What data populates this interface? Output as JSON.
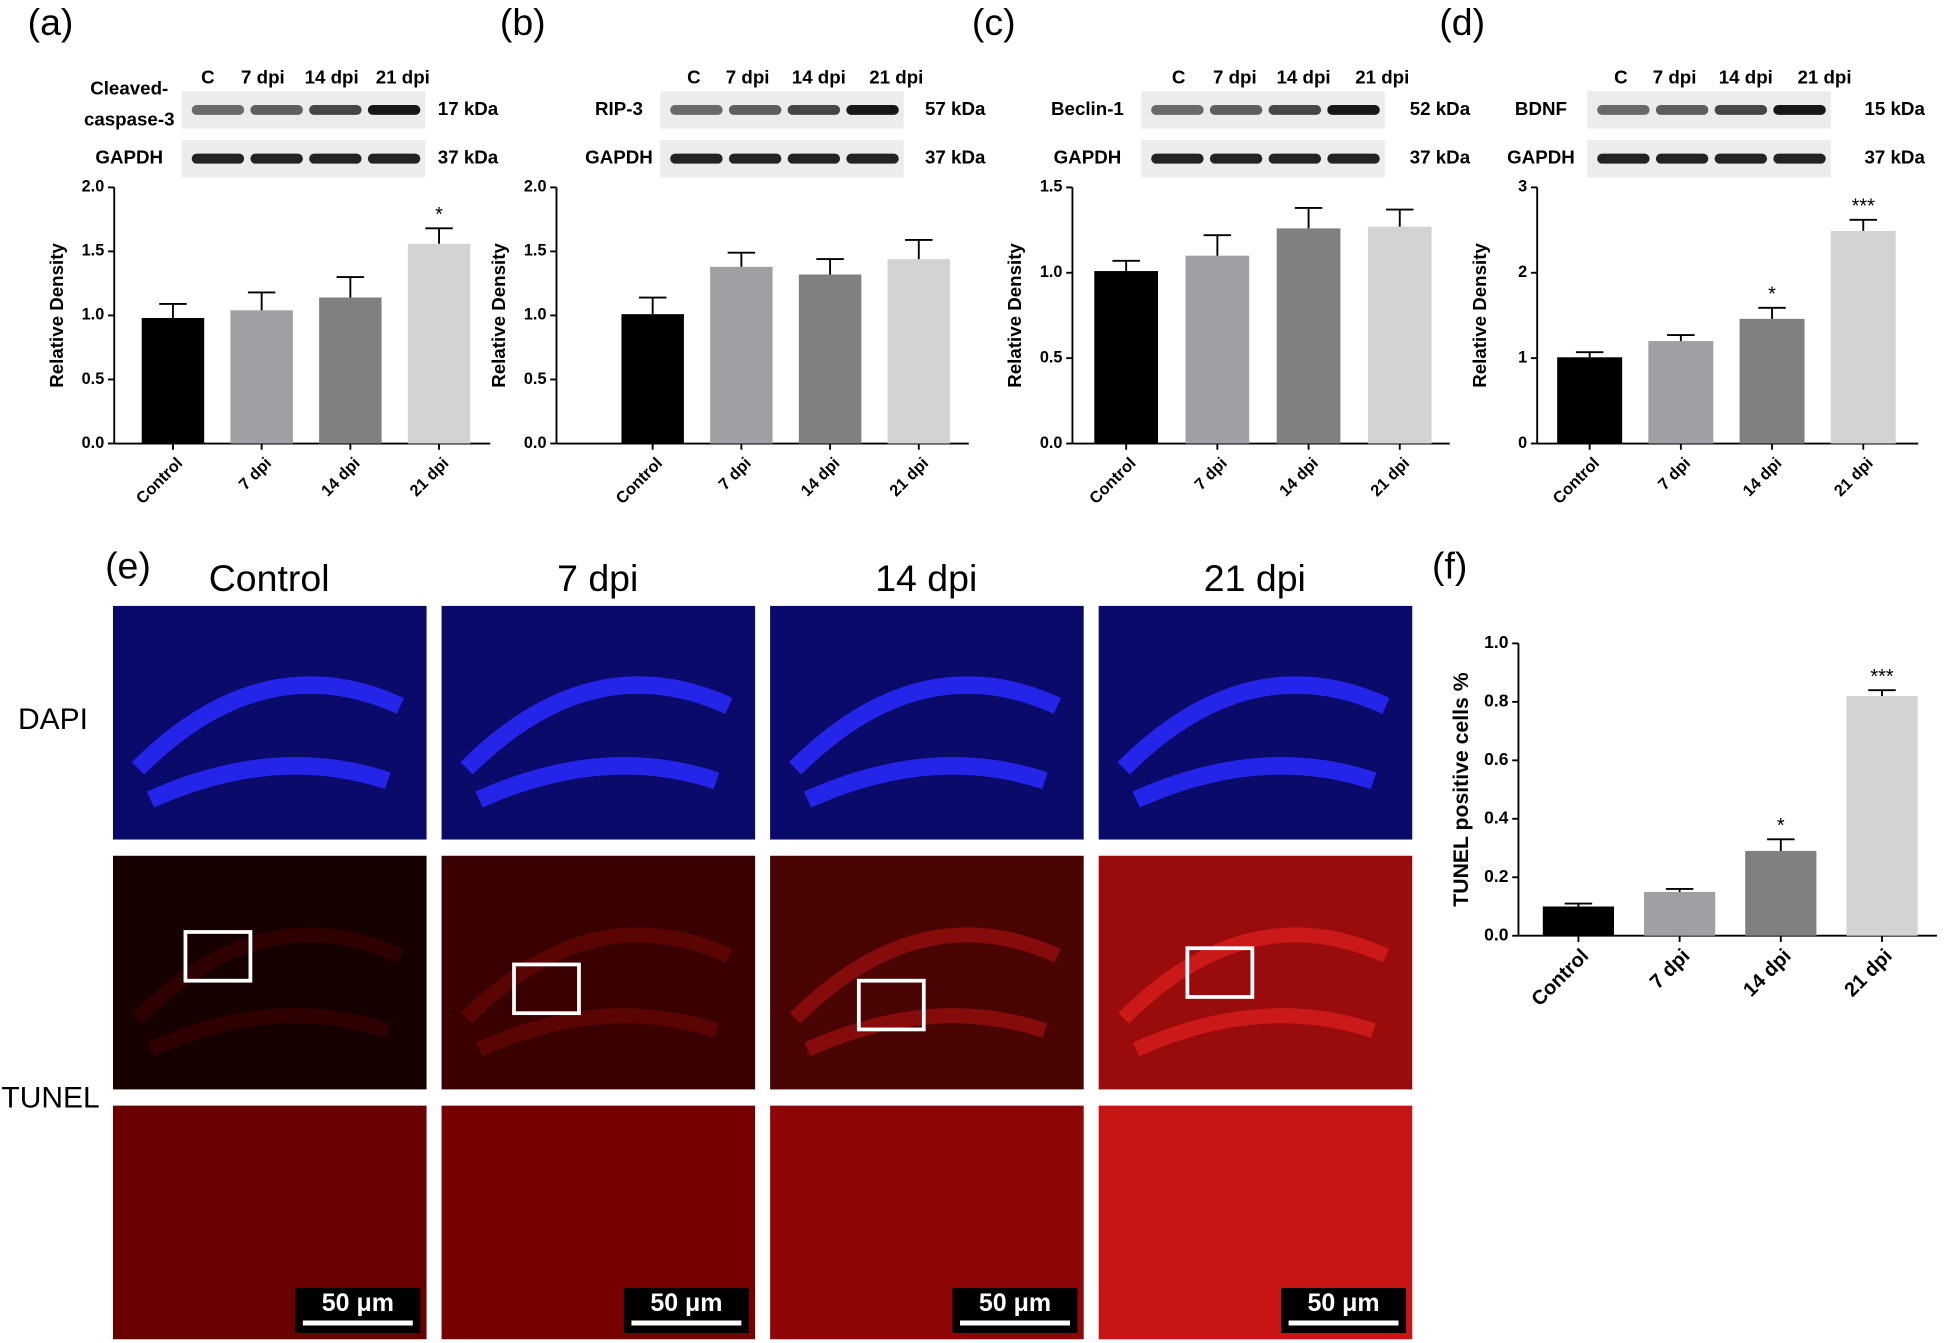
{
  "chart_data": [
    {
      "type": "bar",
      "label": "(a)",
      "ylabel": "Relative Density",
      "blot": {
        "lanes": [
          "C",
          "7 dpi",
          "14 dpi",
          "21 dpi"
        ],
        "rows": [
          {
            "protein": [
              "Cleaved-",
              "caspase-3"
            ],
            "size": "17 kDa"
          },
          {
            "protein": [
              "GAPDH"
            ],
            "size": "37 kDa"
          }
        ]
      },
      "categories": [
        "Control",
        "7 dpi",
        "14 dpi",
        "21 dpi"
      ],
      "values": [
        0.98,
        1.04,
        1.14,
        1.56
      ],
      "errors": [
        0.11,
        0.14,
        0.16,
        0.12
      ],
      "colors": [
        "#000000",
        "#a0a0a4",
        "#808080",
        "#d3d3d3"
      ],
      "annotations": [
        null,
        null,
        null,
        "*"
      ],
      "ylim": [
        0,
        2
      ],
      "yticks": [
        {
          "value": 0,
          "label": "0.0"
        },
        0.5,
        {
          "value": 1,
          "label": "1.0"
        },
        1.5,
        {
          "value": 2,
          "label": "2.0"
        }
      ]
    },
    {
      "type": "bar",
      "label": "(b)",
      "ylabel": "Relative Density",
      "blot": {
        "lanes": [
          "C",
          "7 dpi",
          "14 dpi",
          "21 dpi"
        ],
        "rows": [
          {
            "protein": [
              "RIP-3"
            ],
            "size": "57 kDa"
          },
          {
            "protein": [
              "GAPDH"
            ],
            "size": "37 kDa"
          }
        ]
      },
      "categories": [
        "Control",
        "7 dpi",
        "14 dpi",
        "21 dpi"
      ],
      "values": [
        1.01,
        1.38,
        1.32,
        1.44
      ],
      "errors": [
        0.13,
        0.11,
        0.12,
        0.15
      ],
      "colors": [
        "#000000",
        "#a0a0a4",
        "#808080",
        "#d3d3d3"
      ],
      "ylim": [
        0,
        2
      ],
      "yticks": [
        {
          "value": 0,
          "label": "0.0"
        },
        0.5,
        {
          "value": 1,
          "label": "1.0"
        },
        1.5,
        {
          "value": 2,
          "label": "2.0"
        }
      ]
    },
    {
      "type": "bar",
      "label": "(c)",
      "ylabel": "Relative Density",
      "blot": {
        "lanes": [
          "C",
          "7 dpi",
          "14 dpi",
          "21 dpi"
        ],
        "rows": [
          {
            "protein": [
              "Beclin-1"
            ],
            "size": "52 kDa"
          },
          {
            "protein": [
              "GAPDH"
            ],
            "size": "37 kDa"
          }
        ]
      },
      "categories": [
        "Control",
        "7 dpi",
        "14 dpi",
        "21 dpi"
      ],
      "values": [
        1.01,
        1.1,
        1.26,
        1.27
      ],
      "errors": [
        0.06,
        0.12,
        0.12,
        0.1
      ],
      "colors": [
        "#000000",
        "#a0a0a4",
        "#808080",
        "#d3d3d3"
      ],
      "ylim": [
        0,
        1.5
      ],
      "yticks": [
        {
          "value": 0,
          "label": "0.0"
        },
        0.5,
        {
          "value": 1,
          "label": "1.0"
        },
        1.5
      ]
    },
    {
      "type": "bar",
      "label": "(d)",
      "ylabel": "Relative Density",
      "blot": {
        "lanes": [
          "C",
          "7 dpi",
          "14 dpi",
          "21 dpi"
        ],
        "rows": [
          {
            "protein": [
              "BDNF"
            ],
            "size": "15 kDa"
          },
          {
            "protein": [
              "GAPDH"
            ],
            "size": "37 kDa"
          }
        ]
      },
      "categories": [
        "Control",
        "7 dpi",
        "14 dpi",
        "21 dpi"
      ],
      "values": [
        1.01,
        1.2,
        1.46,
        2.49
      ],
      "errors": [
        0.06,
        0.07,
        0.13,
        0.13
      ],
      "colors": [
        "#000000",
        "#a0a0a4",
        "#808080",
        "#d3d3d3"
      ],
      "annotations": [
        null,
        null,
        "*",
        "***"
      ],
      "ylim": [
        0,
        3
      ],
      "yticks": [
        0,
        1,
        2,
        3
      ]
    },
    {
      "type": "bar",
      "label": "(f)",
      "ylabel": "TUNEL positive cells %",
      "categories": [
        "Control",
        "7 dpi",
        "14 dpi",
        "21 dpi"
      ],
      "values": [
        0.1,
        0.15,
        0.29,
        0.82
      ],
      "errors": [
        0.01,
        0.01,
        0.04,
        0.02
      ],
      "colors": [
        "#000000",
        "#a0a0a4",
        "#808080",
        "#d3d3d3"
      ],
      "annotations": [
        null,
        null,
        "*",
        "***"
      ],
      "ylim": [
        0,
        1
      ],
      "yticks": [
        {
          "value": 0,
          "label": "0.0"
        },
        0.2,
        0.4,
        0.6,
        0.8,
        {
          "value": 1,
          "label": "1.0"
        }
      ]
    }
  ],
  "micrographs": {
    "label": "(e)",
    "columns": [
      "Control",
      "7 dpi",
      "14 dpi",
      "21 dpi"
    ],
    "rows": [
      "DAPI",
      "TUNEL"
    ],
    "scale_bar": "50 μm"
  }
}
